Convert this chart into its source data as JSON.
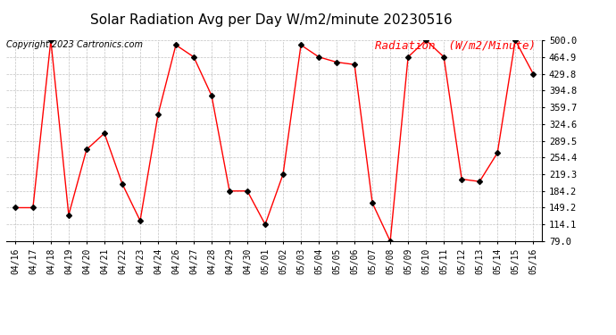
{
  "title": "Solar Radiation Avg per Day W/m2/minute 20230516",
  "copyright": "Copyright 2023 Cartronics.com",
  "legend_label": "Radiation  (W/m2/Minute)",
  "dates": [
    "04/16",
    "04/17",
    "04/18",
    "04/19",
    "04/20",
    "04/21",
    "04/22",
    "04/23",
    "04/24",
    "04/26",
    "04/27",
    "04/28",
    "04/29",
    "04/30",
    "05/01",
    "05/02",
    "05/03",
    "05/04",
    "05/05",
    "05/06",
    "05/07",
    "05/08",
    "05/09",
    "05/10",
    "05/11",
    "05/12",
    "05/13",
    "05/14",
    "05/15",
    "05/16"
  ],
  "values": [
    149.2,
    149.2,
    500.0,
    134.0,
    271.0,
    305.0,
    199.0,
    122.0,
    344.0,
    490.0,
    464.9,
    384.0,
    184.2,
    184.2,
    114.1,
    219.3,
    490.0,
    464.9,
    454.0,
    449.0,
    159.0,
    79.0,
    464.9,
    500.0,
    464.9,
    209.0,
    204.0,
    264.0,
    500.0,
    429.8
  ],
  "line_color": "red",
  "marker_color": "black",
  "marker_style": "D",
  "marker_size": 3,
  "ylim_min": 79.0,
  "ylim_max": 500.0,
  "yticks": [
    79.0,
    114.1,
    149.2,
    184.2,
    219.3,
    254.4,
    289.5,
    324.6,
    359.7,
    394.8,
    429.8,
    464.9,
    500.0
  ],
  "bg_color": "#ffffff",
  "grid_color": "#bbbbbb",
  "title_fontsize": 11,
  "copyright_fontsize": 7,
  "legend_color": "red",
  "legend_fontsize": 9,
  "tick_fontsize": 7,
  "ytick_fontsize": 7.5
}
